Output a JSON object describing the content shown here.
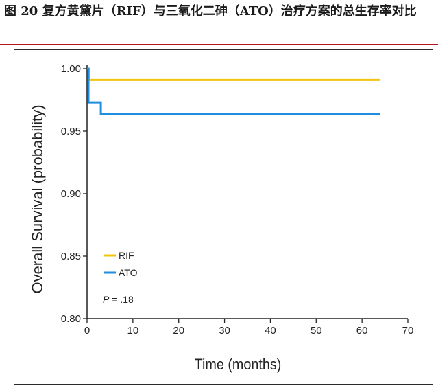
{
  "caption": {
    "text": "图 20 复方黄黛片（RIF）与三氧化二砷（ATO）治疗方案的总生存率对比"
  },
  "colors": {
    "accent_rule": "#b31b1b",
    "rif": "#f2c40f",
    "ato": "#1f8ee0"
  },
  "chart_data": {
    "type": "line",
    "step": true,
    "xlabel": "Time (months)",
    "ylabel": "Overall Survival (probability)",
    "xlim": [
      0,
      70
    ],
    "ylim": [
      0.8,
      1.0
    ],
    "xticks": [
      "0",
      "10",
      "20",
      "30",
      "40",
      "50",
      "60",
      "70"
    ],
    "yticks": [
      "0.80",
      "0.85",
      "0.90",
      "0.95",
      "1.00"
    ],
    "grid": false,
    "legend_position": "bottom-left",
    "annotation": {
      "label": "P",
      "text": " = .18"
    },
    "series": [
      {
        "name": "RIF",
        "x": [
          0,
          0.5,
          0.5,
          64
        ],
        "y": [
          1.0,
          1.0,
          0.991,
          0.991
        ]
      },
      {
        "name": "ATO",
        "x": [
          0,
          0.3,
          0.3,
          3,
          3,
          64
        ],
        "y": [
          1.0,
          1.0,
          0.973,
          0.973,
          0.964,
          0.964
        ]
      }
    ]
  }
}
